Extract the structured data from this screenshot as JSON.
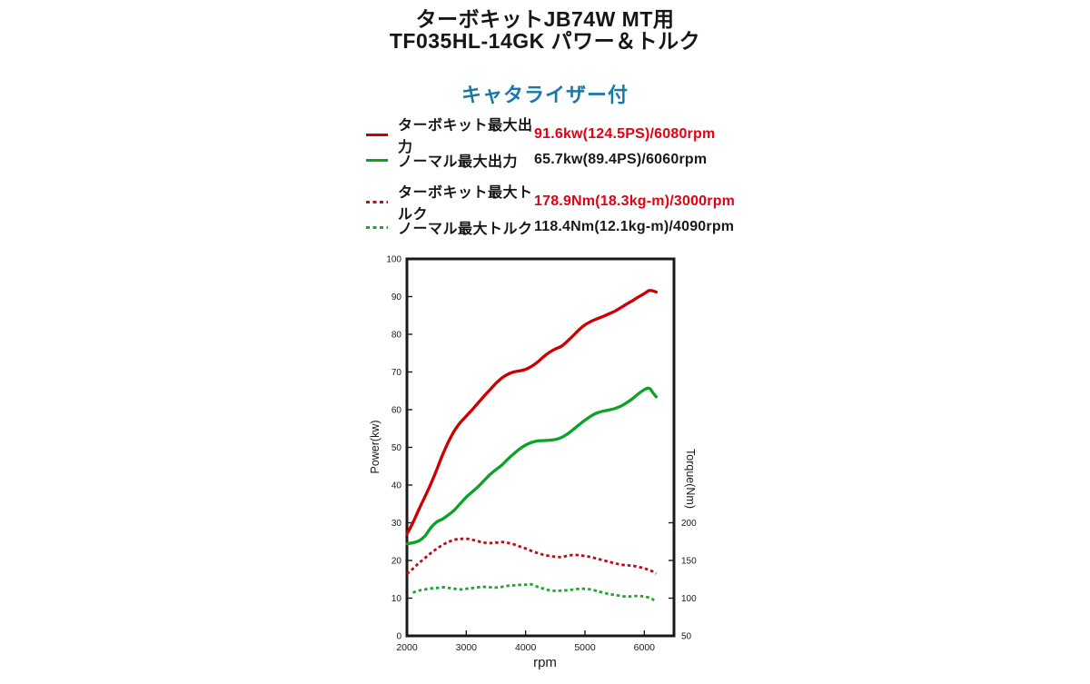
{
  "page": {
    "title_line1": "ターボキットJB74W MT用",
    "title_line2": "TF035HL-14GK パワー＆トルク",
    "subtitle": "キャタライザー付",
    "subtitle_color": "#1879a8"
  },
  "legend": [
    {
      "label": "ターボキット最大出力",
      "value": "91.6kw(124.5PS)/6080rpm",
      "color": "#cc0000",
      "value_color": "#e60012",
      "style": "solid"
    },
    {
      "label": "ノーマル最大出力",
      "value": "65.7kw(89.4PS)/6060rpm",
      "color": "#0aa325",
      "value_color": "#1a1a1a",
      "style": "solid"
    },
    {
      "label": "ターボキット最大トルク",
      "value": "178.9Nm(18.3kg-m)/3000rpm",
      "color": "#bd0c1c",
      "value_color": "#e60012",
      "style": "dashed"
    },
    {
      "label": "ノーマル最大トルク",
      "value": "118.4Nm(12.1kg-m)/4090rpm",
      "color": "#22a52f",
      "value_color": "#1a1a1a",
      "style": "dashed"
    }
  ],
  "chart_data": {
    "type": "line",
    "title": "ターボキットJB74W MT用 TF035HL-14GK パワー＆トルク",
    "subtitle": "キャタライザー付",
    "grid": false,
    "legend_position": "above-chart",
    "x_axis": {
      "label": "rpm",
      "min": 2000,
      "max": 6500,
      "ticks": [
        2000,
        3000,
        4000,
        5000,
        6000
      ]
    },
    "power_axis": {
      "label": "Power(kw)",
      "side": "left",
      "min": 0,
      "max": 100,
      "ticks": [
        0,
        10,
        20,
        30,
        40,
        50,
        60,
        70,
        80,
        90,
        100
      ]
    },
    "torque_axis": {
      "label": "Torque(Nm)",
      "side": "right",
      "ticks": [
        50,
        100,
        150,
        200
      ],
      "offset": 50,
      "nm_per_kw_unit": 5
    },
    "series": [
      {
        "id": "turbo-power",
        "name": "ターボキット最大出力",
        "axis": "power",
        "style": "solid",
        "color": "#cc0000",
        "peak": "91.6kw(124.5PS)/6080rpm",
        "points": [
          [
            2000,
            27
          ],
          [
            2100,
            30
          ],
          [
            2200,
            33.5
          ],
          [
            2300,
            36.8
          ],
          [
            2400,
            40.2
          ],
          [
            2500,
            44
          ],
          [
            2600,
            48
          ],
          [
            2700,
            51.5
          ],
          [
            2750,
            53
          ],
          [
            2800,
            54.4
          ],
          [
            2900,
            56.6
          ],
          [
            3000,
            58.3
          ],
          [
            3100,
            60
          ],
          [
            3200,
            61.8
          ],
          [
            3300,
            63.6
          ],
          [
            3400,
            65.3
          ],
          [
            3500,
            67
          ],
          [
            3600,
            68.4
          ],
          [
            3700,
            69.4
          ],
          [
            3800,
            70
          ],
          [
            3900,
            70.3
          ],
          [
            4000,
            70.7
          ],
          [
            4100,
            71.5
          ],
          [
            4200,
            72.6
          ],
          [
            4300,
            74
          ],
          [
            4400,
            75.2
          ],
          [
            4500,
            76.1
          ],
          [
            4600,
            76.8
          ],
          [
            4700,
            78.1
          ],
          [
            4800,
            79.6
          ],
          [
            4900,
            81.2
          ],
          [
            5000,
            82.5
          ],
          [
            5100,
            83.4
          ],
          [
            5200,
            84.1
          ],
          [
            5300,
            84.7
          ],
          [
            5400,
            85.4
          ],
          [
            5500,
            86.1
          ],
          [
            5600,
            87
          ],
          [
            5700,
            88
          ],
          [
            5800,
            88.9
          ],
          [
            5900,
            89.9
          ],
          [
            6000,
            90.8
          ],
          [
            6080,
            91.6
          ],
          [
            6150,
            91.5
          ],
          [
            6200,
            91.2
          ]
        ]
      },
      {
        "id": "normal-power",
        "name": "ノーマル最大出力",
        "axis": "power",
        "style": "solid",
        "color": "#0aa325",
        "peak": "65.7kw(89.4PS)/6060rpm",
        "points": [
          [
            2000,
            24.4
          ],
          [
            2100,
            24.7
          ],
          [
            2200,
            25.2
          ],
          [
            2300,
            26.4
          ],
          [
            2400,
            28.6
          ],
          [
            2500,
            30.2
          ],
          [
            2600,
            31
          ],
          [
            2700,
            32.1
          ],
          [
            2800,
            33.4
          ],
          [
            2900,
            35.1
          ],
          [
            3000,
            36.8
          ],
          [
            3100,
            38.2
          ],
          [
            3200,
            39.6
          ],
          [
            3300,
            41.2
          ],
          [
            3400,
            42.8
          ],
          [
            3500,
            44.1
          ],
          [
            3600,
            45.3
          ],
          [
            3700,
            46.9
          ],
          [
            3800,
            48.3
          ],
          [
            3900,
            49.6
          ],
          [
            4000,
            50.6
          ],
          [
            4100,
            51.3
          ],
          [
            4200,
            51.7
          ],
          [
            4300,
            51.8
          ],
          [
            4400,
            51.9
          ],
          [
            4500,
            52.1
          ],
          [
            4600,
            52.6
          ],
          [
            4700,
            53.5
          ],
          [
            4800,
            54.7
          ],
          [
            4900,
            56
          ],
          [
            5000,
            57.2
          ],
          [
            5100,
            58.3
          ],
          [
            5200,
            59.1
          ],
          [
            5300,
            59.6
          ],
          [
            5400,
            59.9
          ],
          [
            5500,
            60.3
          ],
          [
            5600,
            60.9
          ],
          [
            5700,
            61.8
          ],
          [
            5800,
            62.9
          ],
          [
            5900,
            64.2
          ],
          [
            6000,
            65.3
          ],
          [
            6060,
            65.7
          ],
          [
            6100,
            65.5
          ],
          [
            6150,
            64.4
          ],
          [
            6200,
            63.4
          ]
        ]
      },
      {
        "id": "turbo-torque",
        "name": "ターボキット最大トルク",
        "axis": "torque",
        "style": "dashed",
        "color": "#bd0c1c",
        "peak": "178.9Nm(18.3kg-m)/3000rpm",
        "points": [
          [
            2000,
            132
          ],
          [
            2100,
            139
          ],
          [
            2200,
            146.5
          ],
          [
            2300,
            153
          ],
          [
            2400,
            159.5
          ],
          [
            2500,
            165.5
          ],
          [
            2600,
            170.5
          ],
          [
            2700,
            174.5
          ],
          [
            2800,
            177.5
          ],
          [
            2900,
            178.6
          ],
          [
            3000,
            178.9
          ],
          [
            3100,
            177.4
          ],
          [
            3200,
            175.4
          ],
          [
            3300,
            173.6
          ],
          [
            3400,
            173
          ],
          [
            3500,
            173.6
          ],
          [
            3600,
            174.4
          ],
          [
            3700,
            173.4
          ],
          [
            3800,
            171.4
          ],
          [
            3900,
            168.6
          ],
          [
            4000,
            165.9
          ],
          [
            4100,
            162.6
          ],
          [
            4200,
            159.9
          ],
          [
            4300,
            157.6
          ],
          [
            4400,
            156
          ],
          [
            4500,
            155
          ],
          [
            4600,
            154.6
          ],
          [
            4700,
            156
          ],
          [
            4800,
            157.4
          ],
          [
            4900,
            157
          ],
          [
            5000,
            155.9
          ],
          [
            5100,
            154.4
          ],
          [
            5200,
            152.4
          ],
          [
            5300,
            150.4
          ],
          [
            5400,
            148.4
          ],
          [
            5500,
            146.4
          ],
          [
            5600,
            144.6
          ],
          [
            5700,
            143.6
          ],
          [
            5800,
            143
          ],
          [
            5900,
            141.4
          ],
          [
            6000,
            139.4
          ],
          [
            6100,
            136.9
          ],
          [
            6200,
            132.5
          ]
        ]
      },
      {
        "id": "normal-torque",
        "name": "ノーマル最大トルク",
        "axis": "torque",
        "style": "dashed",
        "color": "#22a52f",
        "peak": "118.4Nm(12.1kg-m)/4090rpm",
        "points": [
          [
            2100,
            107.5
          ],
          [
            2200,
            110
          ],
          [
            2300,
            111.5
          ],
          [
            2400,
            112.9
          ],
          [
            2500,
            113.5
          ],
          [
            2600,
            114.4
          ],
          [
            2700,
            113.6
          ],
          [
            2800,
            112.5
          ],
          [
            2900,
            111.6
          ],
          [
            3000,
            112.4
          ],
          [
            3100,
            113.4
          ],
          [
            3200,
            114.4
          ],
          [
            3300,
            115
          ],
          [
            3400,
            114.5
          ],
          [
            3500,
            114.1
          ],
          [
            3600,
            115
          ],
          [
            3700,
            116.4
          ],
          [
            3800,
            117
          ],
          [
            3900,
            117.6
          ],
          [
            4000,
            118
          ],
          [
            4090,
            118.4
          ],
          [
            4200,
            115.1
          ],
          [
            4300,
            112.6
          ],
          [
            4400,
            110.6
          ],
          [
            4500,
            109.6
          ],
          [
            4600,
            110
          ],
          [
            4700,
            110.5
          ],
          [
            4800,
            111.5
          ],
          [
            4900,
            112.4
          ],
          [
            5000,
            112.4
          ],
          [
            5100,
            111.4
          ],
          [
            5200,
            109.6
          ],
          [
            5300,
            107.5
          ],
          [
            5400,
            105.5
          ],
          [
            5500,
            104.4
          ],
          [
            5600,
            103
          ],
          [
            5700,
            102
          ],
          [
            5800,
            102.5
          ],
          [
            5900,
            103
          ],
          [
            6000,
            102
          ],
          [
            6100,
            100.4
          ],
          [
            6150,
            98
          ],
          [
            6200,
            95.5
          ]
        ]
      }
    ]
  }
}
